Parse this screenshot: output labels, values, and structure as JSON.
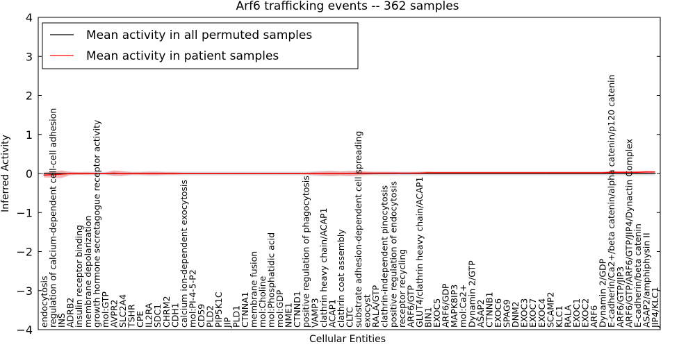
{
  "chart_data": {
    "type": "line",
    "title": "Arf6 trafficking events -- 362 samples",
    "xlabel": "Cellular Entities",
    "ylabel": "Inferred Activity",
    "ylim": [
      -4,
      4
    ],
    "yticks": [
      -4,
      -3,
      -2,
      -1,
      0,
      1,
      2,
      3,
      4
    ],
    "ytick_labels": [
      "−4",
      "−3",
      "−2",
      "−1",
      "0",
      "1",
      "2",
      "3",
      "4"
    ],
    "legend_position": "top-left",
    "legend": [
      {
        "label": "Mean activity in all permuted samples",
        "color": "#000000"
      },
      {
        "label": "Mean activity in patient samples",
        "color": "#ff0000"
      }
    ],
    "categories": [
      "endocytosis",
      "regulation of calcium-dependent cell-cell adhesion",
      "INS",
      "ADRB2",
      "insulin receptor binding",
      "membrane depolarization",
      "growth hormone secretagogue receptor activity",
      "mol:GTP",
      "AVPR2",
      "SLC2A4",
      "TSHR",
      "CPE",
      "IL2RA",
      "SDC1",
      "CHRM2",
      "CDH1",
      "calcium ion-dependent exocytosis",
      "mol:PI-4-5-P2",
      "CD59",
      "PLD2",
      "PIP5K1C",
      "JIP",
      "PLD1",
      "CTNNA1",
      "membrane fusion",
      "mol:Choline",
      "mol:Phosphatidic acid",
      "mol:GDP",
      "NME1",
      "CTNND1",
      "positive regulation of phagocytosis",
      "VAMP3",
      "clathrin heavy chain/ACAP1",
      "ACAP1",
      "clathrin coat assembly",
      "CLTC",
      "substrate adhesion-dependent cell spreading",
      "exocyst",
      "RALA/GTP",
      "clathrin-independent pinocytosis",
      "positive regulation of endocytosis",
      "receptor recycling",
      "ARF6/GTP",
      "GLUT4/clathrin heavy chain/ACAP1",
      "BIN1",
      "EXOC5",
      "ARF6/GDP",
      "MAPK8IP3",
      "mol:Ca2+",
      "Dynamin 2/GTP",
      "ASAP2",
      "CTNNB1",
      "EXOC6",
      "SPAG9",
      "DNM2",
      "EXOC3",
      "EXOC7",
      "EXOC4",
      "SCAMP2",
      "KLC1",
      "RALA",
      "EXOC1",
      "EXOC2",
      "ARF6",
      "Dynamin 2/GDP",
      "E-cadherin/Ca2+/beta catenin/alpha catenin/p120 catenin",
      "ARF6/GTP/JIP3",
      "ARF6/GTP/ARF6/GTP/JIP4/Dynactin Complex",
      "E-cadherin/beta catenin",
      "ASAP2/amphiphysin II",
      "JIP4/KLC1"
    ],
    "series": [
      {
        "name": "Mean activity in all permuted samples",
        "color": "#000000",
        "values": [
          0.0,
          0.0,
          0.0,
          0.0,
          0.0,
          0.0,
          0.0,
          0.0,
          0.0,
          0.0,
          0.0,
          0.0,
          0.0,
          0.0,
          0.0,
          0.0,
          0.0,
          0.0,
          0.0,
          0.0,
          0.0,
          0.0,
          0.0,
          0.0,
          0.0,
          0.0,
          0.0,
          0.0,
          0.0,
          0.0,
          0.0,
          0.0,
          0.0,
          0.0,
          0.0,
          0.0,
          0.0,
          0.0,
          0.0,
          0.0,
          0.0,
          0.0,
          0.0,
          0.0,
          0.0,
          0.0,
          0.0,
          0.0,
          0.0,
          0.0,
          0.0,
          0.0,
          0.0,
          0.0,
          0.0,
          0.0,
          0.0,
          0.0,
          0.0,
          0.0,
          0.0,
          0.0,
          0.0,
          0.0,
          0.0,
          0.0,
          0.0,
          0.0,
          0.0,
          0.0,
          0.0
        ]
      },
      {
        "name": "Mean activity in patient samples",
        "color": "#ff0000",
        "values": [
          -0.04,
          -0.03,
          -0.02,
          0.0,
          0.0,
          0.0,
          0.0,
          0.0,
          0.01,
          0.0,
          0.0,
          0.0,
          0.0,
          0.0,
          0.0,
          0.0,
          0.0,
          0.0,
          0.0,
          0.0,
          0.0,
          0.0,
          0.0,
          0.0,
          0.0,
          0.0,
          0.0,
          0.0,
          0.0,
          0.0,
          0.0,
          0.0,
          0.0,
          0.0,
          0.0,
          0.0,
          0.01,
          0.01,
          0.01,
          0.01,
          0.01,
          0.01,
          0.01,
          0.01,
          0.02,
          0.02,
          0.02,
          0.02,
          0.02,
          0.02,
          0.02,
          0.02,
          0.02,
          0.02,
          0.02,
          0.02,
          0.02,
          0.02,
          0.02,
          0.02,
          0.02,
          0.02,
          0.02,
          0.02,
          0.02,
          0.03,
          0.03,
          0.03,
          0.03,
          0.04,
          0.04
        ]
      }
    ],
    "patient_band_halfwidth": [
      0.06,
      0.08,
      0.1,
      0.04,
      0.03,
      0.03,
      0.02,
      0.02,
      0.07,
      0.06,
      0.03,
      0.03,
      0.04,
      0.04,
      0.03,
      0.03,
      0.02,
      0.02,
      0.02,
      0.02,
      0.02,
      0.02,
      0.02,
      0.02,
      0.02,
      0.02,
      0.02,
      0.02,
      0.02,
      0.02,
      0.02,
      0.04,
      0.05,
      0.06,
      0.05,
      0.06,
      0.06,
      0.04,
      0.03,
      0.03,
      0.03,
      0.02,
      0.02,
      0.03,
      0.03,
      0.02,
      0.02,
      0.02,
      0.02,
      0.02,
      0.02,
      0.02,
      0.02,
      0.02,
      0.02,
      0.02,
      0.02,
      0.02,
      0.02,
      0.02,
      0.02,
      0.02,
      0.02,
      0.02,
      0.02,
      0.03,
      0.03,
      0.03,
      0.03,
      0.03,
      0.02
    ],
    "permuted_band_halfwidth": [
      0.05,
      0.05,
      0.06,
      0.05,
      0.04,
      0.05,
      0.05,
      0.04,
      0.06,
      0.06,
      0.05,
      0.05,
      0.06,
      0.06,
      0.05,
      0.05,
      0.05,
      0.05,
      0.05,
      0.05,
      0.05,
      0.05,
      0.05,
      0.05,
      0.05,
      0.05,
      0.05,
      0.05,
      0.05,
      0.05,
      0.05,
      0.06,
      0.07,
      0.07,
      0.06,
      0.07,
      0.06,
      0.05,
      0.05,
      0.05,
      0.05,
      0.05,
      0.05,
      0.05,
      0.05,
      0.05,
      0.05,
      0.05,
      0.05,
      0.05,
      0.05,
      0.05,
      0.05,
      0.05,
      0.05,
      0.05,
      0.05,
      0.05,
      0.05,
      0.05,
      0.05,
      0.05,
      0.05,
      0.05,
      0.05,
      0.05,
      0.05,
      0.05,
      0.05,
      0.05,
      0.05
    ]
  }
}
